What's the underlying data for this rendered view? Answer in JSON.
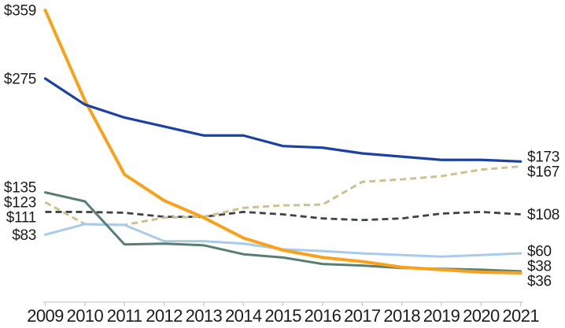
{
  "chart_data": {
    "type": "line",
    "title": "",
    "x_axis": {
      "categories": [
        "2009",
        "2010",
        "2011",
        "2012",
        "2013",
        "2014",
        "2015",
        "2016",
        "2017",
        "2018",
        "2019",
        "2020",
        "2021"
      ],
      "line_color": "#c9cbcc",
      "grid": false,
      "legend": "none"
    },
    "value_range": [
      0,
      359
    ],
    "currency_prefix": "$",
    "text_color": "#1c1c1c",
    "series": [
      {
        "id": "gray-dashed",
        "color": "#3f4348",
        "dashed": true,
        "stroke_width": 2.8,
        "values": [
          111,
          111,
          110,
          105,
          105,
          111,
          108,
          103,
          101,
          103,
          109,
          111,
          108
        ],
        "start_label": "$111",
        "end_label": "$108"
      },
      {
        "id": "tan-dashed",
        "color": "#cdc18e",
        "dashed": true,
        "stroke_width": 3,
        "values": [
          123,
          96,
          95,
          104,
          105,
          116,
          119,
          120,
          148,
          151,
          155,
          163,
          167
        ],
        "start_label": "$123",
        "end_label": "$167"
      },
      {
        "id": "light-blue",
        "color": "#a9cbea",
        "dashed": false,
        "stroke_width": 3,
        "values": [
          83,
          96,
          95,
          75,
          75,
          72,
          65,
          63,
          60,
          58,
          56,
          58,
          60
        ],
        "start_label": "$83",
        "end_label": "$60"
      },
      {
        "id": "teal",
        "color": "#567f72",
        "dashed": false,
        "stroke_width": 3,
        "values": [
          135,
          124,
          71,
          72,
          70,
          59,
          55,
          47,
          45,
          42,
          41,
          40,
          38
        ],
        "start_label": "$135",
        "end_label": "$38"
      },
      {
        "id": "orange",
        "color": "#f9a11b",
        "dashed": false,
        "stroke_width": 4,
        "values": [
          359,
          248,
          157,
          125,
          104,
          79,
          64,
          55,
          50,
          43,
          40,
          37,
          36
        ],
        "start_label": "$359",
        "end_label": "$36"
      },
      {
        "id": "blue",
        "color": "#1b41a5",
        "dashed": false,
        "stroke_width": 3.2,
        "values": [
          275,
          243,
          227,
          216,
          205,
          205,
          192,
          190,
          183,
          179,
          175,
          175,
          173
        ],
        "start_label": "$275",
        "end_label": "$173"
      }
    ]
  }
}
